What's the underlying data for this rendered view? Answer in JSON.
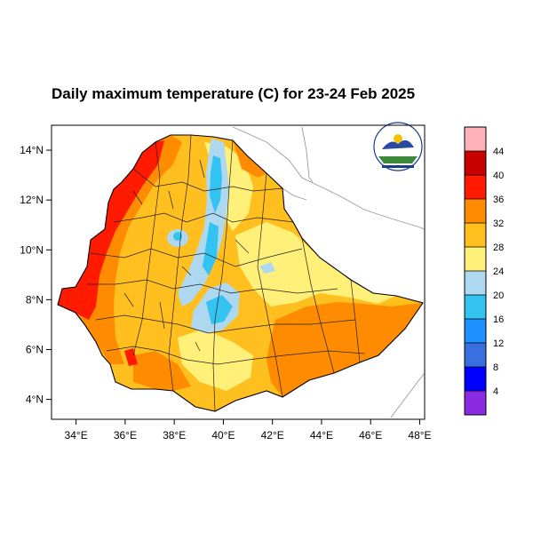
{
  "title": "Daily maximum temperature (C) for 23-24 Feb 2025",
  "axes": {
    "x_ticks": [
      "34°E",
      "36°E",
      "38°E",
      "40°E",
      "42°E",
      "44°E",
      "46°E",
      "48°E"
    ],
    "y_ticks": [
      "4°N",
      "6°N",
      "8°N",
      "10°N",
      "12°N",
      "14°N"
    ],
    "lon_range": [
      33,
      48.2
    ],
    "lat_range": [
      3.2,
      15
    ]
  },
  "colorbar": {
    "labels": [
      "4",
      "8",
      "12",
      "16",
      "20",
      "24",
      "28",
      "32",
      "36",
      "40",
      "44"
    ],
    "colors": [
      "#8a2be2",
      "#0000ff",
      "#3a6fe0",
      "#1e90ff",
      "#33c3f0",
      "#add8f0",
      "#fff07a",
      "#ffbf1f",
      "#ff8c00",
      "#ff1a00",
      "#c80000",
      "#ffb3b8"
    ]
  },
  "regions": {
    "hot_west": "#ff1a00",
    "warm": "#ff8c00",
    "mild": "#ffbf1f",
    "cool_yellow": "#fff07a",
    "highland": "#add8f0",
    "cold": "#33c3f0"
  },
  "logo_icon": "meteorology-agency-logo-icon"
}
